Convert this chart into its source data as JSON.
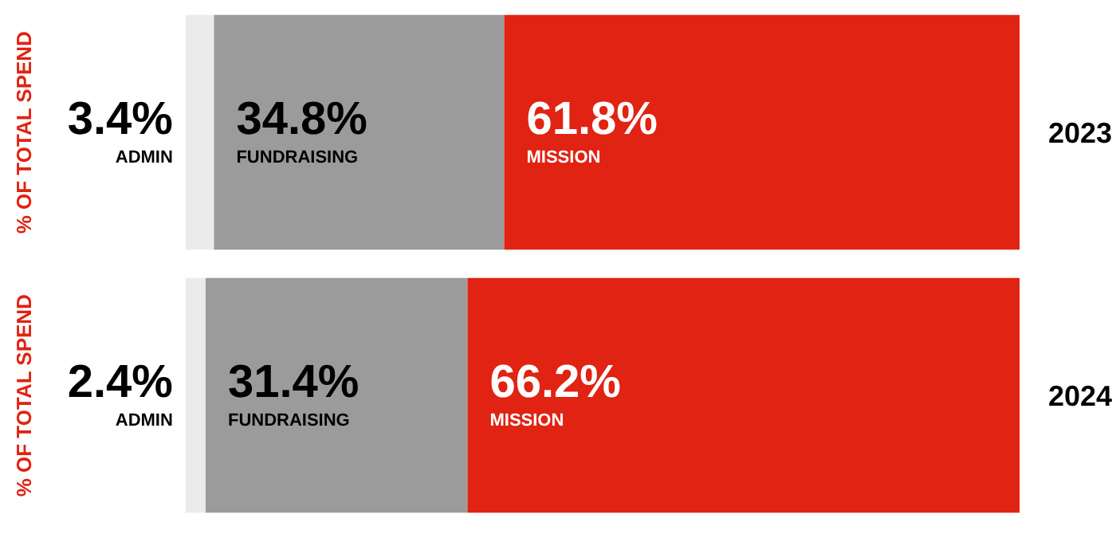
{
  "chart_data": [
    {
      "type": "bar",
      "orientation": "horizontal",
      "stacked": true,
      "ylabel": "% OF TOTAL SPEND",
      "categories": [
        "2023"
      ],
      "tick_labels": "y",
      "grid": false,
      "legend": false,
      "series": [
        {
          "name": "ADMIN",
          "color": "#ebebeb",
          "values": [
            3.4
          ],
          "value_labels": [
            "3.4%"
          ]
        },
        {
          "name": "FUNDRAISING",
          "color": "#9b9b9b",
          "values": [
            34.8
          ],
          "value_labels": [
            "34.8%"
          ]
        },
        {
          "name": "MISSION",
          "color": "#e02312",
          "values": [
            61.8
          ],
          "value_labels": [
            "61.8%"
          ]
        }
      ]
    },
    {
      "type": "bar",
      "orientation": "horizontal",
      "stacked": true,
      "ylabel": "% OF TOTAL SPEND",
      "categories": [
        "2024"
      ],
      "tick_labels": "y",
      "grid": false,
      "legend": false,
      "series": [
        {
          "name": "ADMIN",
          "color": "#ebebeb",
          "values": [
            2.4
          ],
          "value_labels": [
            "2.4%"
          ]
        },
        {
          "name": "FUNDRAISING",
          "color": "#9b9b9b",
          "values": [
            31.4
          ],
          "value_labels": [
            "31.4%"
          ]
        },
        {
          "name": "MISSION",
          "color": "#e02312",
          "values": [
            66.2
          ],
          "value_labels": [
            "66.2%"
          ]
        }
      ]
    }
  ]
}
